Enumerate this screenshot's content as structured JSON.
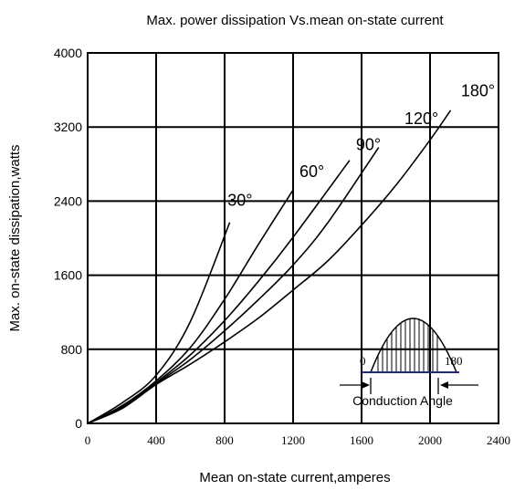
{
  "chart_data": {
    "type": "line",
    "title": "Max. power dissipation Vs.mean on-state current",
    "xlabel": "Mean on-state current,amperes",
    "ylabel": "Max. on-state dissipation,watts",
    "xlim": [
      0,
      2400
    ],
    "ylim": [
      0,
      4000
    ],
    "x_ticks": [
      0,
      400,
      800,
      1200,
      1600,
      2000,
      2400
    ],
    "y_ticks": [
      0,
      800,
      1600,
      2400,
      3200,
      4000
    ],
    "x_tick_labels": [
      "0",
      "400",
      "800",
      "1200",
      "1600",
      "2000",
      "2400"
    ],
    "y_tick_labels": [
      "0",
      "800",
      "1600",
      "2400",
      "3200",
      "4000"
    ],
    "grid": true,
    "series": [
      {
        "name": "30°",
        "x": [
          0,
          200,
          400,
          600,
          830
        ],
        "y": [
          0,
          220,
          520,
          1100,
          2170
        ]
      },
      {
        "name": "60°",
        "x": [
          0,
          200,
          400,
          600,
          800,
          1000,
          1200
        ],
        "y": [
          0,
          190,
          460,
          820,
          1340,
          1940,
          2520
        ]
      },
      {
        "name": "90°",
        "x": [
          0,
          200,
          400,
          600,
          800,
          1000,
          1200,
          1530
        ],
        "y": [
          0,
          175,
          440,
          740,
          1110,
          1540,
          2010,
          2840
        ]
      },
      {
        "name": "120°",
        "x": [
          0,
          200,
          400,
          600,
          800,
          1000,
          1200,
          1400,
          1700
        ],
        "y": [
          0,
          170,
          430,
          690,
          1000,
          1340,
          1710,
          2160,
          2980
        ]
      },
      {
        "name": "180°",
        "x": [
          0,
          200,
          400,
          600,
          800,
          1000,
          1200,
          1400,
          1600,
          1800,
          2000,
          2120
        ],
        "y": [
          0,
          160,
          420,
          640,
          880,
          1140,
          1440,
          1750,
          2140,
          2570,
          3060,
          3380
        ]
      }
    ],
    "curve_labels": [
      {
        "text": "30°",
        "x": 890,
        "y": 2350
      },
      {
        "text": "60°",
        "x": 1310,
        "y": 2660
      },
      {
        "text": "90°",
        "x": 1640,
        "y": 2950
      },
      {
        "text": "120°",
        "x": 1950,
        "y": 3230
      },
      {
        "text": "180°",
        "x": 2280,
        "y": 3530
      }
    ],
    "inset": {
      "caption": "Conduction Angle",
      "start_label": "0",
      "end_label": "180"
    }
  }
}
